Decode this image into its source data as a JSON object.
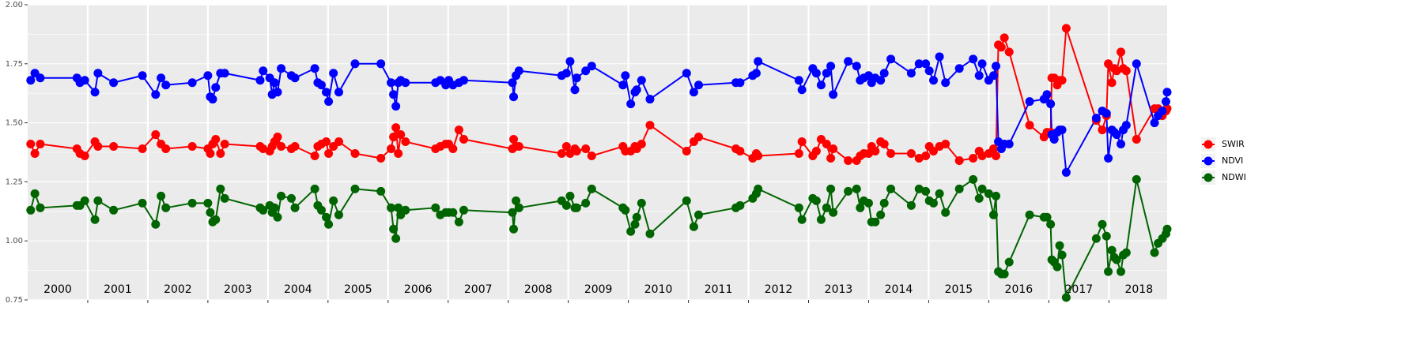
{
  "chart_data": {
    "type": "line",
    "x": [
      2000.05,
      2000.12,
      2000.21,
      2000.82,
      2000.87,
      2000.95,
      2001.12,
      2001.17,
      2001.43,
      2001.91,
      2002.13,
      2002.22,
      2002.3,
      2002.74,
      2003.0,
      2003.04,
      2003.08,
      2003.13,
      2003.21,
      2003.28,
      2003.87,
      2003.92,
      2004.03,
      2004.07,
      2004.11,
      2004.16,
      2004.22,
      2004.39,
      2004.45,
      2004.78,
      2004.83,
      2004.89,
      2004.97,
      2005.01,
      2005.09,
      2005.18,
      2005.45,
      2005.88,
      2006.05,
      2006.09,
      2006.13,
      2006.17,
      2006.21,
      2006.29,
      2006.79,
      2006.87,
      2006.96,
      2007.01,
      2007.08,
      2007.18,
      2007.26,
      2008.07,
      2008.09,
      2008.13,
      2008.18,
      2008.89,
      2008.97,
      2009.03,
      2009.11,
      2009.14,
      2009.29,
      2009.39,
      2009.91,
      2009.95,
      2010.04,
      2010.11,
      2010.14,
      2010.22,
      2010.36,
      2010.97,
      2011.09,
      2011.17,
      2011.79,
      2011.86,
      2012.07,
      2012.13,
      2012.16,
      2012.84,
      2012.89,
      2013.07,
      2013.13,
      2013.21,
      2013.3,
      2013.37,
      2013.41,
      2013.66,
      2013.8,
      2013.86,
      2013.92,
      2014.0,
      2014.05,
      2014.11,
      2014.2,
      2014.26,
      2014.37,
      2014.71,
      2014.84,
      2014.95,
      2015.01,
      2015.08,
      2015.18,
      2015.28,
      2015.51,
      2015.74,
      2015.84,
      2015.89,
      2016.0,
      2016.08,
      2016.12,
      2016.16,
      2016.21,
      2016.26,
      2016.34,
      2016.68,
      2016.92,
      2016.97,
      2017.03,
      2017.05,
      2017.09,
      2017.14,
      2017.18,
      2017.22,
      2017.29,
      2017.79,
      2017.89,
      2017.96,
      2017.99,
      2018.05,
      2018.09,
      2018.13,
      2018.2,
      2018.24,
      2018.29,
      2018.46,
      2018.76,
      2018.82,
      2018.89,
      2018.95,
      2018.97
    ],
    "series": [
      {
        "name": "SWIR",
        "color": "#ff0000",
        "values": [
          1.41,
          1.37,
          1.41,
          1.39,
          1.37,
          1.36,
          1.42,
          1.4,
          1.4,
          1.39,
          1.45,
          1.41,
          1.39,
          1.4,
          1.39,
          1.37,
          1.41,
          1.43,
          1.37,
          1.41,
          1.4,
          1.39,
          1.38,
          1.4,
          1.42,
          1.44,
          1.4,
          1.39,
          1.4,
          1.36,
          1.4,
          1.41,
          1.42,
          1.37,
          1.4,
          1.42,
          1.37,
          1.35,
          1.39,
          1.44,
          1.48,
          1.37,
          1.45,
          1.42,
          1.39,
          1.4,
          1.41,
          1.41,
          1.39,
          1.47,
          1.43,
          1.39,
          1.43,
          1.4,
          1.4,
          1.37,
          1.4,
          1.37,
          1.39,
          1.38,
          1.39,
          1.36,
          1.4,
          1.38,
          1.38,
          1.4,
          1.39,
          1.41,
          1.49,
          1.38,
          1.42,
          1.44,
          1.39,
          1.38,
          1.35,
          1.37,
          1.36,
          1.37,
          1.42,
          1.36,
          1.38,
          1.43,
          1.41,
          1.35,
          1.39,
          1.34,
          1.34,
          1.36,
          1.37,
          1.37,
          1.4,
          1.38,
          1.42,
          1.41,
          1.37,
          1.37,
          1.35,
          1.36,
          1.4,
          1.38,
          1.4,
          1.41,
          1.34,
          1.35,
          1.38,
          1.36,
          1.37,
          1.39,
          1.36,
          1.83,
          1.82,
          1.86,
          1.8,
          1.49,
          1.44,
          1.46,
          1.46,
          1.69,
          1.69,
          1.66,
          1.68,
          1.68,
          1.9,
          1.51,
          1.47,
          1.53,
          1.75,
          1.67,
          1.73,
          1.72,
          1.8,
          1.73,
          1.72,
          1.43,
          1.56,
          1.56,
          1.53,
          1.55,
          1.56
        ]
      },
      {
        "name": "NDVI",
        "color": "#0000ff",
        "values": [
          1.68,
          1.71,
          1.69,
          1.69,
          1.67,
          1.68,
          1.63,
          1.71,
          1.67,
          1.7,
          1.62,
          1.69,
          1.66,
          1.67,
          1.7,
          1.61,
          1.6,
          1.65,
          1.71,
          1.71,
          1.68,
          1.72,
          1.69,
          1.62,
          1.67,
          1.63,
          1.73,
          1.7,
          1.69,
          1.73,
          1.67,
          1.66,
          1.63,
          1.59,
          1.71,
          1.63,
          1.75,
          1.75,
          1.67,
          1.62,
          1.57,
          1.67,
          1.68,
          1.67,
          1.67,
          1.68,
          1.66,
          1.68,
          1.66,
          1.67,
          1.68,
          1.67,
          1.61,
          1.7,
          1.72,
          1.7,
          1.71,
          1.76,
          1.64,
          1.69,
          1.72,
          1.74,
          1.66,
          1.7,
          1.58,
          1.63,
          1.64,
          1.68,
          1.6,
          1.71,
          1.63,
          1.66,
          1.67,
          1.67,
          1.7,
          1.71,
          1.76,
          1.68,
          1.64,
          1.73,
          1.71,
          1.66,
          1.71,
          1.74,
          1.62,
          1.76,
          1.74,
          1.68,
          1.69,
          1.7,
          1.67,
          1.69,
          1.68,
          1.71,
          1.77,
          1.71,
          1.75,
          1.75,
          1.72,
          1.68,
          1.78,
          1.67,
          1.73,
          1.77,
          1.7,
          1.75,
          1.68,
          1.7,
          1.74,
          1.42,
          1.39,
          1.41,
          1.41,
          1.59,
          1.6,
          1.62,
          1.58,
          1.45,
          1.43,
          1.46,
          1.47,
          1.47,
          1.29,
          1.52,
          1.55,
          1.54,
          1.35,
          1.47,
          1.46,
          1.45,
          1.41,
          1.47,
          1.49,
          1.75,
          1.5,
          1.53,
          1.55,
          1.59,
          1.63
        ]
      },
      {
        "name": "NDWI",
        "color": "#006400",
        "values": [
          1.13,
          1.2,
          1.14,
          1.15,
          1.15,
          1.17,
          1.09,
          1.17,
          1.13,
          1.16,
          1.07,
          1.19,
          1.14,
          1.16,
          1.16,
          1.12,
          1.08,
          1.09,
          1.22,
          1.18,
          1.14,
          1.13,
          1.15,
          1.12,
          1.14,
          1.1,
          1.19,
          1.18,
          1.14,
          1.22,
          1.15,
          1.13,
          1.1,
          1.07,
          1.17,
          1.11,
          1.22,
          1.21,
          1.14,
          1.05,
          1.01,
          1.14,
          1.11,
          1.13,
          1.14,
          1.11,
          1.12,
          1.12,
          1.12,
          1.08,
          1.13,
          1.12,
          1.05,
          1.17,
          1.14,
          1.17,
          1.15,
          1.19,
          1.14,
          1.14,
          1.16,
          1.22,
          1.14,
          1.13,
          1.04,
          1.07,
          1.1,
          1.16,
          1.03,
          1.17,
          1.06,
          1.11,
          1.14,
          1.15,
          1.18,
          1.2,
          1.22,
          1.14,
          1.09,
          1.18,
          1.17,
          1.09,
          1.14,
          1.22,
          1.12,
          1.21,
          1.22,
          1.14,
          1.17,
          1.16,
          1.08,
          1.08,
          1.11,
          1.16,
          1.22,
          1.15,
          1.22,
          1.21,
          1.17,
          1.16,
          1.2,
          1.12,
          1.22,
          1.26,
          1.18,
          1.22,
          1.2,
          1.11,
          1.19,
          0.87,
          0.86,
          0.86,
          0.91,
          1.11,
          1.1,
          1.1,
          1.07,
          0.92,
          0.91,
          0.89,
          0.98,
          0.94,
          0.76,
          1.01,
          1.07,
          1.02,
          0.87,
          0.96,
          0.93,
          0.92,
          0.87,
          0.94,
          0.95,
          1.26,
          0.95,
          0.99,
          1.01,
          1.03,
          1.05
        ]
      }
    ],
    "year_labels": [
      "2000",
      "2001",
      "2002",
      "2003",
      "2004",
      "2005",
      "2006",
      "2007",
      "2008",
      "2009",
      "2010",
      "2011",
      "2012",
      "2013",
      "2014",
      "2015",
      "2016",
      "2017",
      "2018"
    ],
    "xlim": [
      2000,
      2018.97
    ],
    "xticks": [
      2001,
      2002,
      2003,
      2004,
      2005,
      2006,
      2007,
      2008,
      2009,
      2010,
      2011,
      2012,
      2013,
      2014,
      2015,
      2016,
      2017,
      2018
    ],
    "ylim": [
      0.75,
      2.0
    ],
    "yticks": [
      0.75,
      {
        "value": 1.0,
        "label": "1.00"
      },
      1.25,
      {
        "value": 1.5,
        "label": "1.50"
      },
      1.75,
      {
        "value": 2.0,
        "label": "2.00"
      }
    ],
    "yminor": [
      0.875,
      1.125,
      1.375,
      1.625,
      1.875
    ],
    "grid": true,
    "legend": "right"
  }
}
